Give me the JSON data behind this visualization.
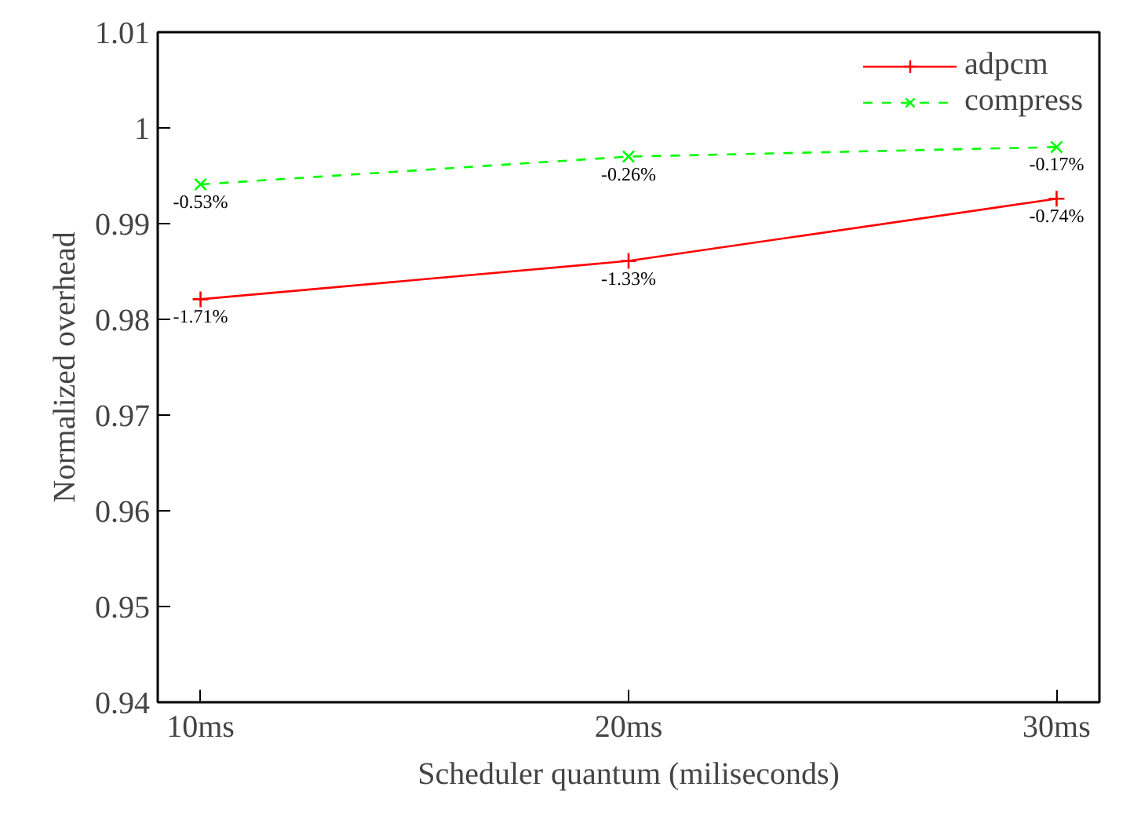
{
  "chart_data": {
    "type": "line",
    "xlabel": "Scheduler quantum (miliseconds)",
    "ylabel": "Normalized overhead",
    "x": [
      10,
      20,
      30
    ],
    "series": [
      {
        "name": "adpcm",
        "color": "#ff0000",
        "marker": "cross",
        "line_style": "solid",
        "values": [
          0.9821,
          0.9861,
          0.9926
        ]
      },
      {
        "name": "compress",
        "color": "#00ff00",
        "marker": "x",
        "line_style": "dashed",
        "values": [
          0.9941,
          0.997,
          0.998
        ]
      }
    ],
    "annotations": [
      {
        "text": "-1.71%",
        "x": 10,
        "y": 0.9821
      },
      {
        "text": "-1.33%",
        "x": 20,
        "y": 0.9861
      },
      {
        "text": "-0.74%",
        "x": 30,
        "y": 0.9926
      },
      {
        "text": "-0.53%",
        "x": 10,
        "y": 0.9941
      },
      {
        "text": "-0.26%",
        "x": 20,
        "y": 0.997
      },
      {
        "text": "-0.17%",
        "x": 30,
        "y": 0.998
      }
    ],
    "xlim": [
      9,
      31
    ],
    "xticks": [
      {
        "value": 10,
        "label": "10ms"
      },
      {
        "value": 20,
        "label": "20ms"
      },
      {
        "value": 30,
        "label": "30ms"
      }
    ],
    "ylim": [
      0.94,
      1.01
    ],
    "yticks": [
      0.94,
      0.95,
      0.96,
      0.97,
      0.98,
      0.99,
      1,
      1.01
    ],
    "grid": false,
    "legend": "top right"
  }
}
